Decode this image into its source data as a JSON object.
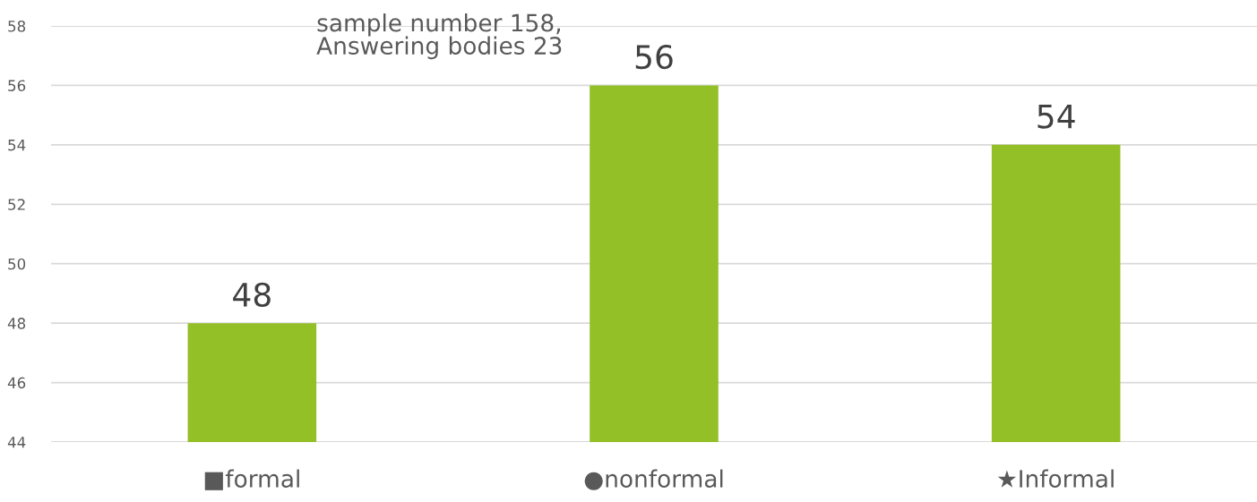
{
  "chart_data": {
    "type": "bar",
    "categories": [
      "■formal",
      "●nonformal",
      "★Informal"
    ],
    "values": [
      48,
      56,
      54
    ],
    "color": "#92c026",
    "ylim": [
      44,
      58
    ],
    "yticks": [
      44,
      46,
      48,
      50,
      52,
      54,
      56,
      58
    ],
    "grid": "y",
    "data_labels": true,
    "annotations": [
      "sample number 158,\nAnswering bodies 23"
    ]
  }
}
